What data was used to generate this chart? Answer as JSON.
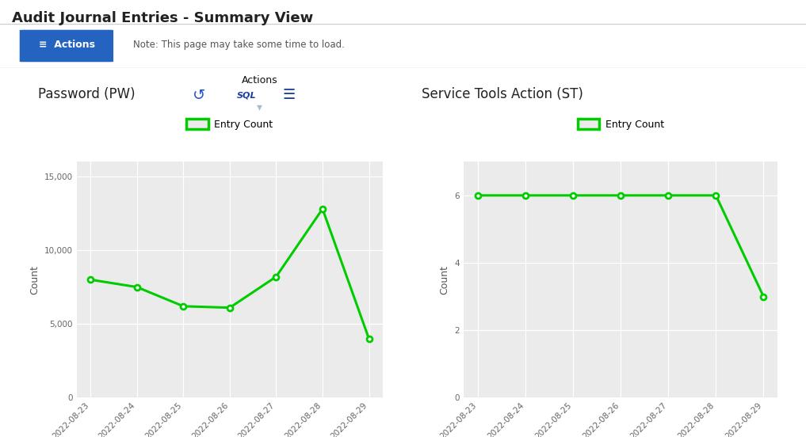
{
  "title": "Audit Journal Entries - Summary View",
  "fig_bg": "#ffffff",
  "toolbar_bg": "#e8e8e8",
  "chart_panel_bg": "#e8e8e8",
  "note_text": "Note: This page may take some time to load.",
  "actions_btn_color": "#2563c0",
  "chart1": {
    "title": "Password (PW)",
    "dates": [
      "2022-08-23",
      "2022-08-24",
      "2022-08-25",
      "2022-08-26",
      "2022-08-27",
      "2022-08-28",
      "2022-08-29"
    ],
    "values": [
      8000,
      7500,
      6200,
      6100,
      8200,
      12800,
      4000
    ],
    "ylabel": "Count",
    "ylim": [
      0,
      16000
    ],
    "yticks": [
      0,
      5000,
      10000,
      15000
    ],
    "line_color": "#00cc00",
    "marker_color": "#00cc00",
    "border_color": "#22dd22",
    "panel_bg": "#ebebeb",
    "legend_label": "Entry Count"
  },
  "chart2": {
    "title": "Service Tools Action (ST)",
    "dates": [
      "2022-08-23",
      "2022-08-24",
      "2022-08-25",
      "2022-08-26",
      "2022-08-27",
      "2022-08-28",
      "2022-08-29"
    ],
    "values": [
      6,
      6,
      6,
      6,
      6,
      6,
      3
    ],
    "ylabel": "Count",
    "ylim": [
      0,
      7
    ],
    "yticks": [
      0,
      2,
      4,
      6
    ],
    "line_color": "#00cc00",
    "marker_color": "#00cc00",
    "border_color": "#cccccc",
    "panel_bg": "#ebebeb",
    "legend_label": "Entry Count"
  },
  "toolbar_border_color": "#ee00aa",
  "popup_bg": "#d8e8f8",
  "popup_border": "#aabbcc"
}
